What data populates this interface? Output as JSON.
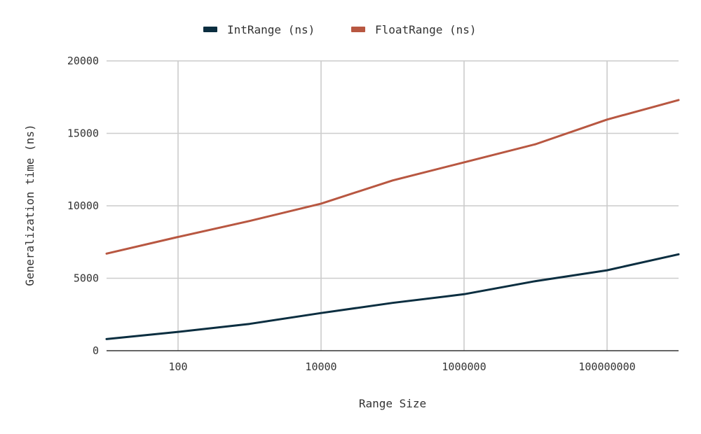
{
  "chart_data": {
    "type": "line",
    "xlabel": "Range Size",
    "ylabel": "Generalization time (ns)",
    "x_scale": "log10",
    "xlim": [
      10,
      1000000000
    ],
    "ylim": [
      0,
      20000
    ],
    "x_ticks": [
      100,
      10000,
      1000000,
      100000000
    ],
    "x_tick_labels": [
      "100",
      "10000",
      "1000000",
      "100000000"
    ],
    "y_ticks": [
      0,
      5000,
      10000,
      15000,
      20000
    ],
    "y_tick_labels": [
      "0",
      "5000",
      "10000",
      "15000",
      "20000"
    ],
    "grid": true,
    "legend_position": "top-center",
    "x": [
      10,
      100,
      1000,
      10000,
      100000,
      1000000,
      10000000,
      100000000,
      1000000000
    ],
    "series": [
      {
        "name": "IntRange (ns)",
        "color": "#0b2e40",
        "values": [
          800,
          1300,
          1850,
          2600,
          3300,
          3900,
          4800,
          5550,
          6650
        ]
      },
      {
        "name": "FloatRange (ns)",
        "color": "#b85741",
        "values": [
          6700,
          7850,
          8950,
          10150,
          11750,
          13000,
          14250,
          15950,
          17300
        ]
      }
    ]
  }
}
